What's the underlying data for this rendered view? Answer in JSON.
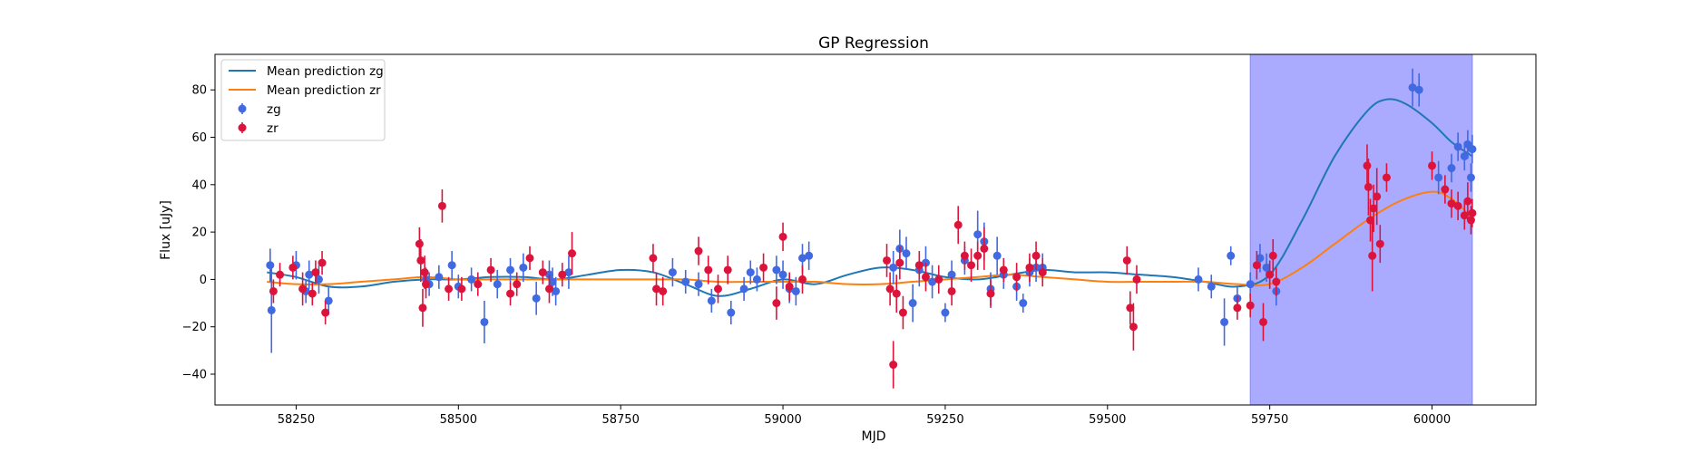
{
  "chart_data": {
    "type": "scatter",
    "title": "GP Regression",
    "xlabel": "MJD",
    "ylabel": "Flux [uJy]",
    "xlim": [
      58125,
      60160
    ],
    "ylim": [
      -53,
      95
    ],
    "xticks": [
      58250,
      58500,
      58750,
      59000,
      59250,
      59500,
      59750,
      60000
    ],
    "yticks": [
      -40,
      -20,
      0,
      20,
      40,
      60,
      80
    ],
    "grid": false,
    "legend": {
      "placement": "top-left"
    },
    "shaded_region": {
      "x": [
        59720,
        60062
      ],
      "color": "#aaaaff"
    },
    "colors": {
      "zg": "#4169e1",
      "zr": "#dc143c",
      "line_zg": "#1f77b4",
      "line_zr": "#ff7f0e"
    },
    "series": [
      {
        "name": "Mean prediction zg",
        "kind": "line",
        "color": "#1f77b4",
        "x": [
          58205,
          58250,
          58300,
          58350,
          58400,
          58450,
          58500,
          58550,
          58600,
          58650,
          58700,
          58750,
          58800,
          58850,
          58900,
          58950,
          59000,
          59050,
          59100,
          59150,
          59200,
          59250,
          59300,
          59350,
          59400,
          59450,
          59500,
          59550,
          59600,
          59650,
          59700,
          59750,
          59800,
          59850,
          59900,
          59930,
          59960,
          60000,
          60030,
          60062
        ],
        "y": [
          3,
          1,
          -3,
          -3,
          -1,
          0,
          0,
          1,
          1,
          0,
          2,
          4,
          3,
          -2,
          -7,
          -4,
          0,
          -2,
          2,
          5,
          4,
          1,
          0,
          2,
          4,
          3,
          3,
          2,
          1,
          -1,
          -3,
          2,
          25,
          52,
          71,
          76,
          74,
          66,
          58,
          52
        ]
      },
      {
        "name": "Mean prediction zr",
        "kind": "line",
        "color": "#ff7f0e",
        "x": [
          58205,
          58250,
          58300,
          58350,
          58400,
          58450,
          58500,
          58550,
          58600,
          58650,
          58700,
          58750,
          58800,
          58850,
          58900,
          58950,
          59000,
          59050,
          59100,
          59150,
          59200,
          59250,
          59300,
          59350,
          59400,
          59450,
          59500,
          59550,
          59600,
          59650,
          59700,
          59750,
          59800,
          59850,
          59900,
          59950,
          60000,
          60030,
          60062
        ],
        "y": [
          -1,
          -2,
          -2,
          -1,
          0,
          1,
          0,
          0,
          0,
          0,
          0,
          0,
          0,
          0,
          -1,
          -1,
          -1,
          -1,
          -2,
          -2,
          -1,
          0,
          1,
          2,
          1,
          0,
          -1,
          -1,
          -1,
          -1,
          -2,
          -2,
          5,
          15,
          25,
          33,
          37,
          34,
          26
        ]
      },
      {
        "name": "zg",
        "kind": "errorbar",
        "color": "#4169e1",
        "x": [
          58210,
          58212,
          58250,
          58265,
          58270,
          58285,
          58300,
          58450,
          58455,
          58470,
          58490,
          58500,
          58520,
          58540,
          58560,
          58580,
          58600,
          58620,
          58640,
          58645,
          58650,
          58670,
          58830,
          58850,
          58870,
          58890,
          58920,
          58940,
          58950,
          58960,
          58990,
          59000,
          59010,
          59020,
          59030,
          59040,
          59170,
          59180,
          59190,
          59200,
          59210,
          59220,
          59230,
          59250,
          59260,
          59280,
          59300,
          59310,
          59320,
          59330,
          59340,
          59360,
          59370,
          59380,
          59390,
          59400,
          59640,
          59660,
          59680,
          59690,
          59700,
          59720,
          59735,
          59745,
          59760,
          59970,
          59980,
          60010,
          60030,
          60040,
          60050,
          60055,
          60060,
          60062
        ],
        "y": [
          6,
          -13,
          6,
          -5,
          2,
          0,
          -9,
          0,
          -2,
          1,
          6,
          -3,
          0,
          -18,
          -2,
          4,
          5,
          -8,
          2,
          -1,
          -5,
          3,
          3,
          -1,
          -2,
          -9,
          -14,
          -4,
          3,
          0,
          4,
          2,
          -4,
          -5,
          9,
          10,
          5,
          13,
          11,
          -10,
          4,
          7,
          -1,
          -14,
          2,
          8,
          19,
          16,
          -4,
          10,
          2,
          -3,
          -10,
          3,
          5,
          5,
          0,
          -3,
          -18,
          10,
          -8,
          -2,
          9,
          5,
          -5,
          81,
          80,
          43,
          47,
          56,
          52,
          57,
          43,
          55
        ],
        "err": [
          7,
          18,
          6,
          5,
          6,
          6,
          6,
          5,
          5,
          5,
          6,
          5,
          5,
          9,
          6,
          5,
          6,
          7,
          6,
          6,
          6,
          7,
          6,
          5,
          5,
          5,
          5,
          5,
          5,
          5,
          6,
          6,
          6,
          6,
          6,
          6,
          7,
          8,
          7,
          8,
          7,
          7,
          7,
          4,
          6,
          6,
          10,
          8,
          7,
          8,
          6,
          6,
          4,
          6,
          6,
          6,
          5,
          5,
          10,
          4,
          5,
          5,
          6,
          6,
          6,
          8,
          7,
          7,
          6,
          6,
          6,
          6,
          6,
          6
        ]
      },
      {
        "name": "zr",
        "kind": "errorbar",
        "color": "#dc143c",
        "x": [
          58215,
          58225,
          58245,
          58260,
          58275,
          58280,
          58290,
          58295,
          58440,
          58442,
          58445,
          58448,
          58450,
          58475,
          58485,
          58505,
          58530,
          58550,
          58580,
          58590,
          58610,
          58630,
          58640,
          58660,
          58675,
          58800,
          58805,
          58815,
          58870,
          58885,
          58900,
          58915,
          58970,
          58990,
          59000,
          59010,
          59030,
          59160,
          59165,
          59170,
          59175,
          59180,
          59185,
          59210,
          59220,
          59240,
          59260,
          59270,
          59280,
          59290,
          59300,
          59310,
          59320,
          59340,
          59360,
          59380,
          59390,
          59400,
          59530,
          59535,
          59540,
          59545,
          59700,
          59720,
          59730,
          59740,
          59750,
          59755,
          59760,
          59900,
          59902,
          59905,
          59908,
          59910,
          59915,
          59920,
          59930,
          60000,
          60020,
          60030,
          60040,
          60050,
          60055,
          60060,
          60062
        ],
        "y": [
          -5,
          2,
          5,
          -4,
          -6,
          3,
          7,
          -14,
          15,
          8,
          -12,
          3,
          -2,
          31,
          -4,
          -4,
          -2,
          4,
          -6,
          -2,
          9,
          3,
          -4,
          2,
          11,
          9,
          -4,
          -5,
          12,
          4,
          -4,
          4,
          5,
          -10,
          18,
          -3,
          0,
          8,
          -4,
          -36,
          -6,
          7,
          -14,
          6,
          1,
          0,
          -5,
          23,
          10,
          6,
          10,
          13,
          -6,
          4,
          1,
          5,
          10,
          3,
          8,
          -12,
          -20,
          0,
          -12,
          -11,
          6,
          -18,
          2,
          10,
          -1,
          48,
          39,
          25,
          10,
          30,
          35,
          15,
          43,
          48,
          38,
          32,
          31,
          27,
          33,
          25,
          28
        ],
        "err": [
          5,
          5,
          5,
          7,
          5,
          5,
          5,
          5,
          7,
          9,
          8,
          7,
          6,
          7,
          5,
          5,
          5,
          5,
          5,
          5,
          5,
          5,
          6,
          5,
          9,
          6,
          7,
          6,
          6,
          6,
          6,
          6,
          6,
          7,
          6,
          6,
          6,
          7,
          7,
          10,
          8,
          7,
          7,
          6,
          6,
          6,
          6,
          8,
          6,
          7,
          6,
          9,
          6,
          5,
          6,
          6,
          6,
          6,
          6,
          7,
          10,
          6,
          5,
          5,
          6,
          8,
          6,
          7,
          6,
          9,
          12,
          9,
          15,
          10,
          12,
          8,
          6,
          6,
          6,
          6,
          6,
          6,
          8,
          6,
          6
        ]
      }
    ]
  }
}
